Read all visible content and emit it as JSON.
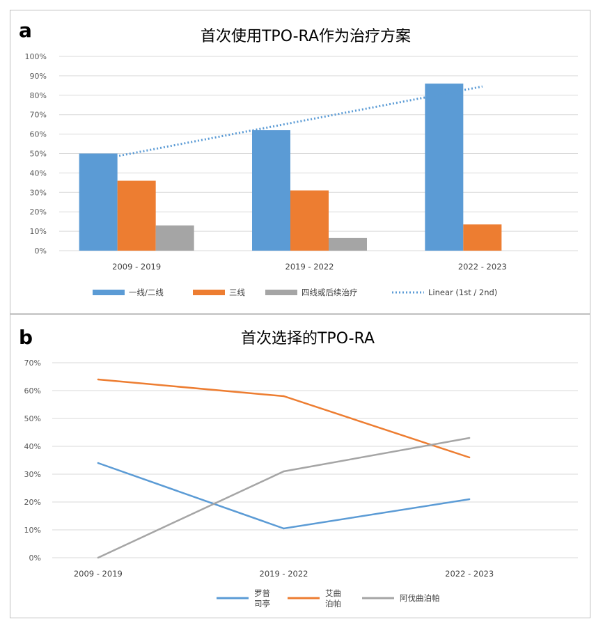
{
  "chart_data": [
    {
      "type": "bar",
      "panel_label": "a",
      "title": "首次使用TPO-RA作为治疗方案",
      "categories": [
        "2009 - 2019",
        "2019 - 2022",
        "2022 - 2023"
      ],
      "series": [
        {
          "name": "一线/二线",
          "values": [
            50,
            62,
            86
          ],
          "color": "#5b9bd5"
        },
        {
          "name": "三线",
          "values": [
            36,
            31,
            13.5
          ],
          "color": "#ed7d31"
        },
        {
          "name": "四线或后续治疗",
          "values": [
            13,
            6.5,
            0
          ],
          "color": "#a5a5a5"
        }
      ],
      "trendline": {
        "name": "Linear (1st / 2nd)",
        "type": "linear",
        "color": "#5b9bd5",
        "style": "dotted",
        "from": 48.5,
        "to": 84.5
      },
      "y_ticks": [
        "0%",
        "10%",
        "20%",
        "30%",
        "40%",
        "50%",
        "60%",
        "70%",
        "80%",
        "90%",
        "100%"
      ],
      "ylim": [
        0,
        100
      ],
      "grid": true,
      "legend_position": "bottom"
    },
    {
      "type": "line",
      "panel_label": "b",
      "title": "首次选择的TPO-RA",
      "categories": [
        "2009 - 2019",
        "2019 - 2022",
        "2022 - 2023"
      ],
      "series": [
        {
          "name": "罗普\n司亭",
          "values": [
            34,
            10.5,
            21
          ],
          "color": "#5b9bd5"
        },
        {
          "name": "艾曲\n泊帕",
          "values": [
            64,
            58,
            36
          ],
          "color": "#ed7d31"
        },
        {
          "name": "阿伐曲泊帕",
          "values": [
            0,
            31,
            43
          ],
          "color": "#a5a5a5"
        }
      ],
      "y_ticks": [
        "0%",
        "10%",
        "20%",
        "30%",
        "40%",
        "50%",
        "60%",
        "70%"
      ],
      "ylim": [
        0,
        70
      ],
      "grid": true,
      "legend_position": "bottom"
    }
  ]
}
